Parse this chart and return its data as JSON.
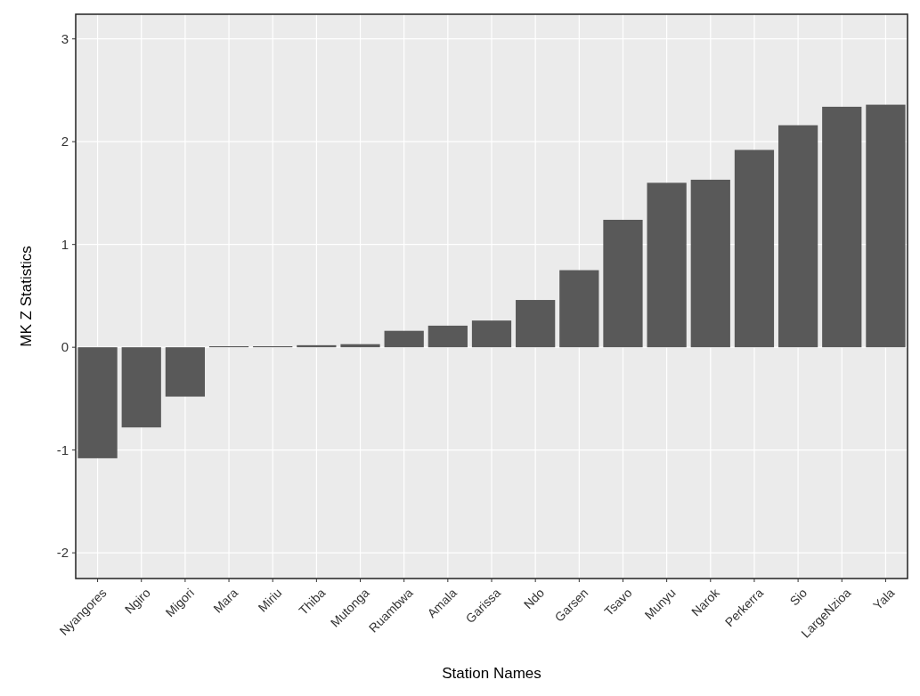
{
  "chart_data": {
    "type": "bar",
    "xlabel": "Station Names",
    "ylabel": "MK Z Statistics",
    "categories": [
      "Nyangores",
      "Ngiro",
      "Migori",
      "Mara",
      "Miriu",
      "Thiba",
      "Mutonga",
      "Ruambwa",
      "Amala",
      "Garissa",
      "Ndo",
      "Garsen",
      "Tsavo",
      "Munyu",
      "Narok",
      "Perkerra",
      "Sio",
      "LargeNzioa",
      "Yala"
    ],
    "values": [
      -1.08,
      -0.78,
      -0.48,
      0.01,
      0.01,
      0.02,
      0.03,
      0.16,
      0.21,
      0.26,
      0.46,
      0.75,
      1.24,
      1.6,
      1.63,
      1.92,
      2.16,
      2.34,
      2.36
    ],
    "color": "#595959",
    "ylim": [
      -2.25,
      3.24
    ],
    "yticks": [
      -2,
      -1,
      0,
      1,
      2,
      3
    ],
    "grid": true
  }
}
